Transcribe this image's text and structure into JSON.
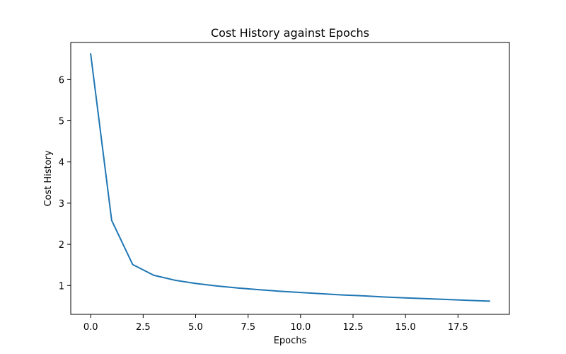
{
  "chart_data": {
    "type": "line",
    "title": "Cost History against Epochs",
    "xlabel": "Epochs",
    "ylabel": "Cost History",
    "xlim": [
      -0.95,
      19.95
    ],
    "ylim": [
      0.3,
      6.9
    ],
    "xticks": [
      0,
      2.5,
      5,
      7.5,
      10,
      12.5,
      15,
      17.5
    ],
    "xtick_labels": [
      "0.0",
      "2.5",
      "5.0",
      "7.5",
      "10.0",
      "12.5",
      "15.0",
      "17.5"
    ],
    "yticks": [
      1,
      2,
      3,
      4,
      5,
      6
    ],
    "ytick_labels": [
      "1",
      "2",
      "3",
      "4",
      "5",
      "6"
    ],
    "grid": false,
    "legend": false,
    "series": [
      {
        "color": "#1f77b4",
        "x": [
          0,
          1,
          2,
          3,
          4,
          5,
          6,
          7,
          8,
          9,
          10,
          11,
          12,
          13,
          14,
          15,
          16,
          17,
          18,
          19
        ],
        "values": [
          6.62,
          2.58,
          1.51,
          1.25,
          1.13,
          1.05,
          0.99,
          0.94,
          0.9,
          0.86,
          0.83,
          0.8,
          0.77,
          0.75,
          0.72,
          0.7,
          0.68,
          0.66,
          0.64,
          0.62
        ]
      }
    ]
  }
}
